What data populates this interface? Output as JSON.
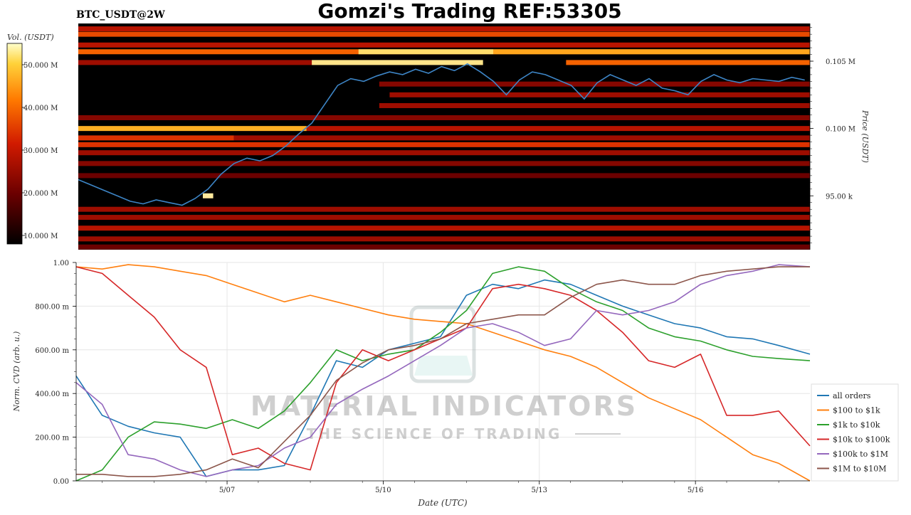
{
  "header": {
    "title": "Gomzi's Trading REF:53305",
    "ticker": "BTC_USDT@2W"
  },
  "colorbar": {
    "label": "Vol. (USDT)",
    "ticks": [
      "50.000 M",
      "40.000 M",
      "30.000 M",
      "20.000 M",
      "10.000 M"
    ],
    "tick_values": [
      50000000,
      40000000,
      30000000,
      20000000,
      10000000
    ],
    "range": [
      8000000,
      55000000
    ]
  },
  "watermark": {
    "line1": "MATERIAL INDICATORS",
    "line2": "THE SCIENCE OF TRADING"
  },
  "chart_data": [
    {
      "type": "heatmap",
      "ylabel": "Price (USDT)",
      "yticks": [
        "0.105 M",
        "0.100 M",
        "95.00 k"
      ],
      "ytick_values": [
        105000,
        100000,
        95000
      ],
      "ylim": [
        91000,
        107800
      ],
      "xlim_days": [
        0,
        14.1
      ],
      "colorscale": [
        "#000000",
        "#6b0000",
        "#d11a00",
        "#ff7a00",
        "#ffd23a",
        "#ffffff"
      ],
      "price_line_color": "#3d85c6",
      "price": [
        96200,
        95800,
        95400,
        95000,
        94600,
        94400,
        94700,
        94500,
        94300,
        94800,
        95500,
        96600,
        97400,
        97800,
        97600,
        98000,
        98700,
        99600,
        100400,
        101800,
        103200,
        103700,
        103500,
        103900,
        104200,
        104000,
        104400,
        104100,
        104600,
        104300,
        104800,
        104200,
        103500,
        102500,
        103600,
        104200,
        104000,
        103600,
        103200,
        102200,
        103400,
        104000,
        103600,
        103200,
        103700,
        103000,
        102800,
        102500,
        103500,
        104000,
        103600,
        103400,
        103700,
        103600,
        103500,
        103800,
        103600
      ],
      "price_step_days": 0.25,
      "liquidity_bands": [
        {
          "price": 107400,
          "start": 0.0,
          "end": 14.1,
          "intensity": 0.35
        },
        {
          "price": 107000,
          "start": 0.0,
          "end": 14.1,
          "intensity": 0.5
        },
        {
          "price": 106200,
          "start": 0.0,
          "end": 14.1,
          "intensity": 0.35
        },
        {
          "price": 105700,
          "start": 0.0,
          "end": 14.1,
          "intensity": 0.55
        },
        {
          "price": 105700,
          "start": 5.4,
          "end": 8.0,
          "intensity": 0.85
        },
        {
          "price": 105700,
          "start": 8.0,
          "end": 14.1,
          "intensity": 0.7
        },
        {
          "price": 104900,
          "start": 0.0,
          "end": 4.5,
          "intensity": 0.3
        },
        {
          "price": 104900,
          "start": 4.5,
          "end": 7.8,
          "intensity": 0.88
        },
        {
          "price": 104900,
          "start": 9.4,
          "end": 14.1,
          "intensity": 0.55
        },
        {
          "price": 103300,
          "start": 5.8,
          "end": 14.1,
          "intensity": 0.25
        },
        {
          "price": 102500,
          "start": 6.0,
          "end": 14.1,
          "intensity": 0.3
        },
        {
          "price": 101700,
          "start": 5.8,
          "end": 14.1,
          "intensity": 0.3
        },
        {
          "price": 100800,
          "start": 0.0,
          "end": 14.1,
          "intensity": 0.25
        },
        {
          "price": 100000,
          "start": 0.0,
          "end": 4.4,
          "intensity": 0.72
        },
        {
          "price": 100000,
          "start": 4.4,
          "end": 14.1,
          "intensity": 0.35
        },
        {
          "price": 99300,
          "start": 0.0,
          "end": 3.0,
          "intensity": 0.45
        },
        {
          "price": 99300,
          "start": 3.0,
          "end": 14.1,
          "intensity": 0.3
        },
        {
          "price": 98800,
          "start": 0.0,
          "end": 14.1,
          "intensity": 0.45
        },
        {
          "price": 98200,
          "start": 0.0,
          "end": 14.1,
          "intensity": 0.3
        },
        {
          "price": 97400,
          "start": 0.0,
          "end": 14.1,
          "intensity": 0.25
        },
        {
          "price": 96500,
          "start": 0.0,
          "end": 14.1,
          "intensity": 0.2
        },
        {
          "price": 95000,
          "start": 2.4,
          "end": 2.6,
          "intensity": 0.9
        },
        {
          "price": 94000,
          "start": 0.0,
          "end": 14.1,
          "intensity": 0.3
        },
        {
          "price": 93400,
          "start": 0.0,
          "end": 14.1,
          "intensity": 0.3
        },
        {
          "price": 92600,
          "start": 0.0,
          "end": 14.1,
          "intensity": 0.35
        },
        {
          "price": 91800,
          "start": 0.0,
          "end": 14.1,
          "intensity": 0.3
        },
        {
          "price": 91200,
          "start": 0.0,
          "end": 14.1,
          "intensity": 0.2
        }
      ]
    },
    {
      "type": "line",
      "xlabel": "Date (UTC)",
      "ylabel": "Norm. CVD (arb. u.)",
      "ylim": [
        0,
        1
      ],
      "yticks": [
        "1.00",
        "800.00 m",
        "600.00 m",
        "400.00 m",
        "200.00 m",
        "0.00"
      ],
      "ytick_values": [
        1.0,
        0.8,
        0.6,
        0.4,
        0.2,
        0.0
      ],
      "xticks": [
        "5/07",
        "5/10",
        "5/13",
        "5/16"
      ],
      "xtick_days": [
        2.9,
        5.9,
        8.9,
        11.9
      ],
      "xlim_days": [
        0,
        14.1
      ],
      "legend_position": "lower-right",
      "grid": true,
      "x_days": [
        0,
        0.5,
        1,
        1.5,
        2,
        2.5,
        3,
        3.5,
        4,
        4.5,
        5,
        5.5,
        6,
        6.5,
        7,
        7.5,
        8,
        8.5,
        9,
        9.5,
        10,
        10.5,
        11,
        11.5,
        12,
        12.5,
        13,
        13.5,
        14.1
      ],
      "series": [
        {
          "name": "all orders",
          "color": "#1f77b4",
          "values": [
            0.48,
            0.3,
            0.25,
            0.22,
            0.2,
            0.02,
            0.05,
            0.05,
            0.07,
            0.3,
            0.55,
            0.52,
            0.6,
            0.63,
            0.66,
            0.85,
            0.9,
            0.88,
            0.92,
            0.9,
            0.85,
            0.8,
            0.76,
            0.72,
            0.7,
            0.66,
            0.65,
            0.62,
            0.58
          ]
        },
        {
          "name": "$100 to $1k",
          "color": "#ff7f0e",
          "values": [
            0.98,
            0.97,
            0.99,
            0.98,
            0.96,
            0.94,
            0.9,
            0.86,
            0.82,
            0.85,
            0.82,
            0.79,
            0.76,
            0.74,
            0.73,
            0.72,
            0.68,
            0.64,
            0.6,
            0.57,
            0.52,
            0.45,
            0.38,
            0.33,
            0.28,
            0.2,
            0.12,
            0.08,
            0.0
          ]
        },
        {
          "name": "$1k to $10k",
          "color": "#2ca02c",
          "values": [
            0.0,
            0.05,
            0.2,
            0.27,
            0.26,
            0.24,
            0.28,
            0.24,
            0.32,
            0.45,
            0.6,
            0.55,
            0.58,
            0.6,
            0.68,
            0.78,
            0.95,
            0.98,
            0.96,
            0.88,
            0.82,
            0.78,
            0.7,
            0.66,
            0.64,
            0.6,
            0.57,
            0.56,
            0.55
          ]
        },
        {
          "name": "$10k to $100k",
          "color": "#d62728",
          "values": [
            0.98,
            0.95,
            0.85,
            0.75,
            0.6,
            0.52,
            0.12,
            0.15,
            0.08,
            0.05,
            0.45,
            0.6,
            0.55,
            0.6,
            0.65,
            0.7,
            0.88,
            0.9,
            0.88,
            0.85,
            0.78,
            0.68,
            0.55,
            0.52,
            0.58,
            0.3,
            0.3,
            0.32,
            0.16
          ]
        },
        {
          "name": "$100k to $1M",
          "color": "#9467bd",
          "values": [
            0.45,
            0.35,
            0.12,
            0.1,
            0.05,
            0.02,
            0.05,
            0.07,
            0.15,
            0.2,
            0.35,
            0.42,
            0.48,
            0.55,
            0.62,
            0.7,
            0.72,
            0.68,
            0.62,
            0.65,
            0.78,
            0.76,
            0.78,
            0.82,
            0.9,
            0.94,
            0.96,
            0.99,
            0.98
          ]
        },
        {
          "name": "$1M to $10M",
          "color": "#8c564b",
          "values": [
            0.03,
            0.03,
            0.02,
            0.02,
            0.03,
            0.05,
            0.1,
            0.06,
            0.18,
            0.3,
            0.46,
            0.54,
            0.6,
            0.62,
            0.65,
            0.72,
            0.74,
            0.76,
            0.76,
            0.84,
            0.9,
            0.92,
            0.9,
            0.9,
            0.94,
            0.96,
            0.97,
            0.98,
            0.98
          ]
        }
      ]
    }
  ]
}
